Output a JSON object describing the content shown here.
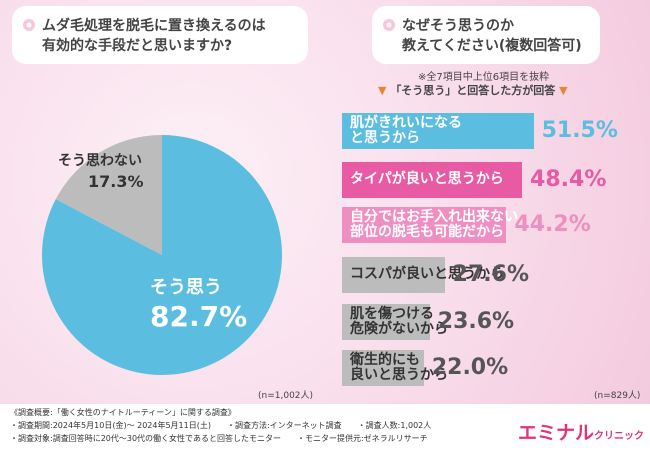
{
  "questions": {
    "q1_line1": "ムダ毛処理を脱毛に置き換えるのは",
    "q1_line2": "有効的な手段だと思いますか?",
    "q2_line1": "なぜそう思うのか",
    "q2_line2": "教えてください(複数回答可)"
  },
  "notes": {
    "extract": "※全7項目中上位6項目を抜粋",
    "respondents": "「そう思う」と回答した方が回答",
    "n_left": "(n=1,002人)",
    "n_right": "(n=829人)"
  },
  "chart_data": [
    {
      "type": "pie",
      "slices": [
        {
          "label": "そう思う",
          "value": 82.7,
          "pct_text": "82.7%",
          "color": "#5bbde0"
        },
        {
          "label": "そう思わない",
          "value": 17.3,
          "pct_text": "17.3%",
          "color": "#bcbcbc"
        }
      ]
    },
    {
      "type": "bar",
      "orientation": "horizontal",
      "xlim": [
        0,
        100
      ],
      "bars": [
        {
          "label_line1": "肌がきれいになる",
          "label_line2": "と思うから",
          "value": 51.5,
          "pct_text": "51.5%",
          "color": "#5bbde0",
          "text_color": "#ffffff",
          "pct_color": "#5bbde0"
        },
        {
          "label_line1": "タイパが良いと思うから",
          "label_line2": "",
          "value": 48.4,
          "pct_text": "48.4%",
          "color": "#e85aa3",
          "text_color": "#ffffff",
          "pct_color": "#e85aa3"
        },
        {
          "label_line1": "自分ではお手入れ出来ない",
          "label_line2": "部位の脱毛も可能だから",
          "value": 44.2,
          "pct_text": "44.2%",
          "color": "#ef8fc1",
          "text_color": "#ffffff",
          "pct_color": "#ef8fc1"
        },
        {
          "label_line1": "コスパが良いと思うから",
          "label_line2": "",
          "value": 27.6,
          "pct_text": "27.6%",
          "color": "#bcbcbc",
          "text_color": "#333333",
          "pct_color": "#555555"
        },
        {
          "label_line1": "肌を傷つける",
          "label_line2": "危険がないから",
          "value": 23.6,
          "pct_text": "23.6%",
          "color": "#bcbcbc",
          "text_color": "#333333",
          "pct_color": "#555555"
        },
        {
          "label_line1": "衛生的にも",
          "label_line2": "良いと思うから",
          "value": 22.0,
          "pct_text": "22.0%",
          "color": "#bcbcbc",
          "text_color": "#333333",
          "pct_color": "#555555"
        }
      ]
    }
  ],
  "footer": {
    "line1": "《調査概要:「働く女性のナイトルーティーン」に関する調査》",
    "line2": "・調査期間:2024年5月10日(金)〜 2024年5月11日(土)　　・調査方法:インターネット調査　　・調査人数:1,002人",
    "line3": "・調査対象:調査回答時に20代〜30代の働く女性であると回答したモニター　　・モニター提供元:ゼネラルリサーチ"
  },
  "logo": {
    "main": "エミナル",
    "sub": "クリニック"
  }
}
